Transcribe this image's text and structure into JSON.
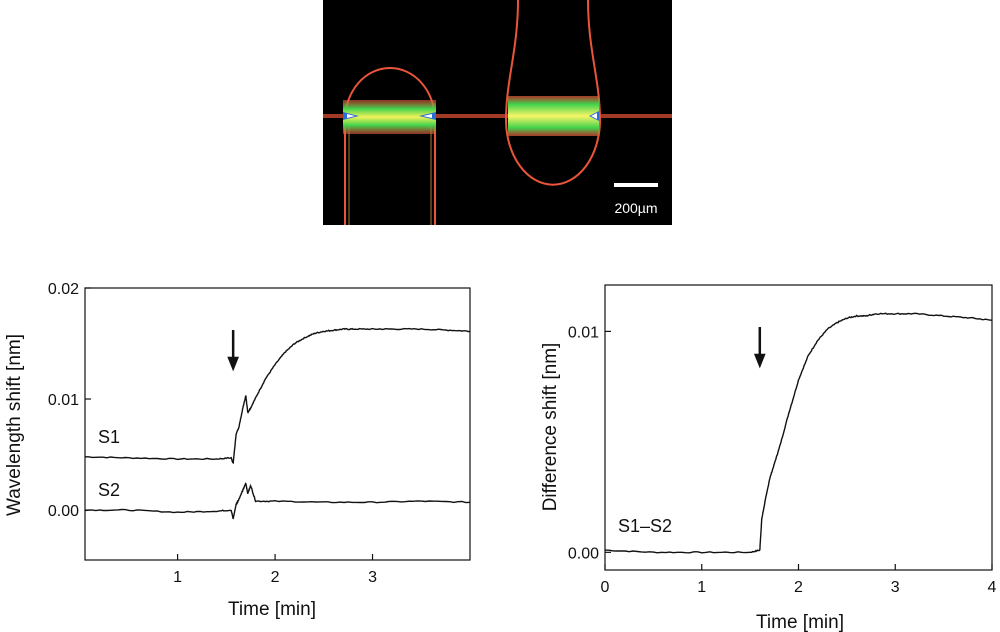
{
  "micrograph": {
    "scale_bar_label": "200µm",
    "colors": {
      "background": "#000000",
      "rim": "#e8553a",
      "core_green": "#3fd24c",
      "core_yellow": "#f2f25a",
      "core_blue": "#2c6cd6"
    }
  },
  "chart_data": [
    {
      "type": "line",
      "xlabel": "Time [min]",
      "ylabel": "Wavelength shift [nm]",
      "xlim": [
        0.05,
        4.0
      ],
      "ylim": [
        -0.0045,
        0.02
      ],
      "xticks": [
        1,
        2,
        3
      ],
      "xtick_labels": [
        "1",
        "2",
        "3"
      ],
      "yticks": [
        0.0,
        0.01,
        0.02
      ],
      "ytick_labels": [
        "0.00",
        "0.01",
        "0.02"
      ],
      "grid": false,
      "annotations": [
        {
          "type": "arrow",
          "x": 1.57,
          "label": ""
        }
      ],
      "series": [
        {
          "name": "S1",
          "x": [
            0.05,
            0.5,
            1.0,
            1.4,
            1.55,
            1.57,
            1.6,
            1.63,
            1.67,
            1.7,
            1.72,
            1.75,
            1.8,
            1.9,
            2.0,
            2.1,
            2.2,
            2.3,
            2.4,
            2.5,
            2.6,
            2.7,
            2.8,
            3.0,
            3.2,
            3.5,
            3.8,
            4.0
          ],
          "y": [
            0.0048,
            0.0047,
            0.0046,
            0.0046,
            0.0047,
            0.0042,
            0.0068,
            0.0075,
            0.0092,
            0.0103,
            0.0088,
            0.0092,
            0.0101,
            0.0118,
            0.0131,
            0.0142,
            0.015,
            0.0155,
            0.0159,
            0.0161,
            0.0162,
            0.0163,
            0.0163,
            0.0163,
            0.0163,
            0.0163,
            0.0162,
            0.0161
          ]
        },
        {
          "name": "S2",
          "x": [
            0.05,
            0.5,
            1.0,
            1.4,
            1.55,
            1.57,
            1.6,
            1.63,
            1.67,
            1.7,
            1.72,
            1.75,
            1.8,
            2.0,
            2.5,
            3.0,
            3.5,
            4.0
          ],
          "y": [
            0.0,
            0.0,
            -0.0002,
            -0.0001,
            0.0,
            -0.0008,
            0.0005,
            0.001,
            0.0018,
            0.0024,
            0.0015,
            0.0022,
            0.0008,
            0.0008,
            0.0007,
            0.0007,
            0.0008,
            0.0007
          ]
        }
      ]
    },
    {
      "type": "line",
      "xlabel": "Time [min]",
      "ylabel": "Difference shift [nm]",
      "xlim": [
        0,
        4
      ],
      "ylim": [
        -0.0008,
        0.0121
      ],
      "xticks": [
        0,
        1,
        2,
        3,
        4
      ],
      "xtick_labels": [
        "0",
        "1",
        "2",
        "3",
        "4"
      ],
      "yticks": [
        0.0,
        0.01
      ],
      "ytick_labels": [
        "0.00",
        "0.01"
      ],
      "grid": false,
      "annotations": [
        {
          "type": "arrow",
          "x": 1.6,
          "label": ""
        }
      ],
      "series": [
        {
          "name": "S1–S2",
          "x": [
            0.0,
            0.5,
            1.0,
            1.5,
            1.6,
            1.62,
            1.65,
            1.7,
            1.75,
            1.8,
            1.9,
            2.0,
            2.1,
            2.2,
            2.3,
            2.4,
            2.5,
            2.6,
            2.7,
            2.8,
            3.0,
            3.2,
            3.5,
            3.8,
            4.0
          ],
          "y": [
            0.0001,
            0.0,
            0.0,
            0.0,
            0.0001,
            0.0015,
            0.0022,
            0.0033,
            0.004,
            0.0047,
            0.0063,
            0.0078,
            0.0089,
            0.0096,
            0.0101,
            0.0104,
            0.0106,
            0.0107,
            0.0107,
            0.0108,
            0.0108,
            0.0108,
            0.0107,
            0.0106,
            0.0105
          ]
        }
      ]
    }
  ]
}
